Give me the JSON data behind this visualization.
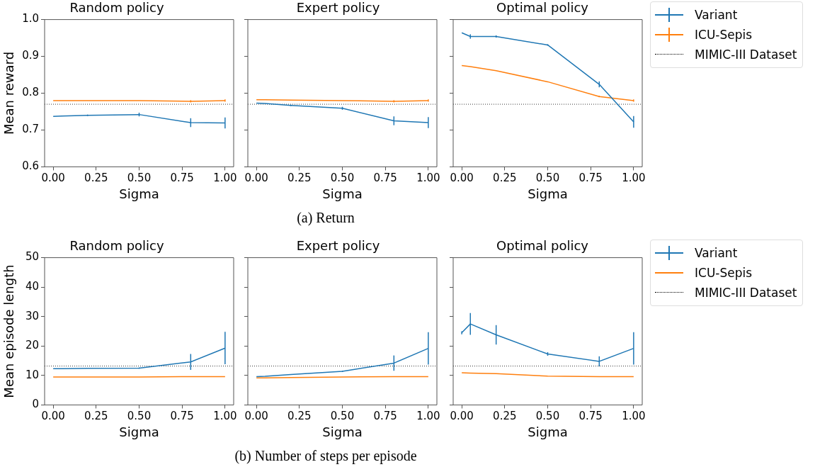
{
  "chart_data": [
    {
      "type": "line",
      "title": "Random policy",
      "xlabel": "Sigma",
      "ylabel": "Mean reward",
      "xlim": [
        -0.05,
        1.05
      ],
      "xticks": [
        {
          "value": 0,
          "label": "0.00"
        },
        {
          "value": 0.25,
          "label": "0.25"
        },
        {
          "value": 0.5,
          "label": "0.50"
        },
        {
          "value": 0.75,
          "label": "0.75"
        },
        {
          "value": 1,
          "label": "1.00"
        }
      ],
      "ylim": [
        0.6,
        1.0
      ],
      "yticks": [
        0.6,
        0.7,
        0.8,
        0.9,
        {
          "value": 1.0,
          "label": "1.0"
        }
      ],
      "grid": false,
      "x": [
        0,
        0.05,
        0.2,
        0.5,
        0.8,
        1
      ],
      "annotations": [
        "(a) Return"
      ],
      "series": [
        {
          "color": "#1f77b4",
          "values": [
            0.737,
            0.738,
            0.74,
            0.742,
            0.72,
            0.719
          ],
          "errors": [
            null,
            null,
            0.002,
            0.005,
            0.012,
            0.015
          ]
        },
        {
          "color": "#ff7f0e",
          "values": [
            0.78,
            0.78,
            0.78,
            0.78,
            0.778,
            0.78
          ],
          "errors": [
            null,
            null,
            null,
            null,
            0.003,
            0.003
          ]
        }
      ],
      "ref_lines": [
        {
          "axis": "y",
          "value": 0.77,
          "color": "#000000",
          "line_style": "dotted"
        }
      ]
    },
    {
      "type": "line",
      "title": "Expert policy",
      "xlabel": "Sigma",
      "xlim": [
        -0.05,
        1.05
      ],
      "xticks": [
        {
          "value": 0,
          "label": "0.00"
        },
        {
          "value": 0.25,
          "label": "0.25"
        },
        {
          "value": 0.5,
          "label": "0.50"
        },
        {
          "value": 0.75,
          "label": "0.75"
        },
        {
          "value": 1,
          "label": "1.00"
        }
      ],
      "ylim": [
        0.6,
        1.0
      ],
      "yticks": [
        0.6,
        0.7,
        0.8,
        0.9,
        1.0
      ],
      "tick_labels": "x",
      "grid": false,
      "x": [
        0,
        0.05,
        0.2,
        0.5,
        0.8,
        1
      ],
      "series": [
        {
          "color": "#1f77b4",
          "values": [
            0.773,
            0.772,
            0.767,
            0.759,
            0.725,
            0.72
          ],
          "errors": [
            null,
            null,
            0.002,
            0.004,
            0.012,
            0.015
          ]
        },
        {
          "color": "#ff7f0e",
          "values": [
            0.782,
            0.782,
            0.781,
            0.78,
            0.778,
            0.78
          ],
          "errors": [
            null,
            null,
            null,
            null,
            0.003,
            0.003
          ]
        }
      ],
      "ref_lines": [
        {
          "axis": "y",
          "value": 0.77,
          "color": "#000000",
          "line_style": "dotted"
        }
      ]
    },
    {
      "type": "line",
      "title": "Optimal policy",
      "xlabel": "Sigma",
      "xlim": [
        -0.05,
        1.05
      ],
      "xticks": [
        {
          "value": 0,
          "label": "0.00"
        },
        {
          "value": 0.25,
          "label": "0.25"
        },
        {
          "value": 0.5,
          "label": "0.50"
        },
        {
          "value": 0.75,
          "label": "0.75"
        },
        {
          "value": 1,
          "label": "1.00"
        }
      ],
      "ylim": [
        0.6,
        1.0
      ],
      "yticks": [
        0.6,
        0.7,
        0.8,
        0.9,
        1.0
      ],
      "tick_labels": "x",
      "grid": false,
      "legend": "right",
      "x": [
        0,
        0.05,
        0.2,
        0.5,
        0.8,
        1
      ],
      "series": [
        {
          "name": "Variant",
          "color": "#1f77b4",
          "values": [
            0.964,
            0.954,
            0.954,
            0.931,
            0.824,
            0.722
          ],
          "errors": [
            null,
            0.006,
            0.003,
            0.002,
            0.008,
            0.016
          ]
        },
        {
          "name": "ICU-Sepis",
          "color": "#ff7f0e",
          "values": [
            0.875,
            0.872,
            0.861,
            0.831,
            0.791,
            0.78
          ],
          "errors": [
            null,
            null,
            null,
            null,
            0.002,
            0.003
          ]
        }
      ],
      "ref_lines": [
        {
          "axis": "y",
          "value": 0.77,
          "label": "MIMIC-III Dataset",
          "color": "#000000",
          "line_style": "dotted"
        }
      ]
    },
    {
      "type": "line",
      "title": "Random policy",
      "xlabel": "Sigma",
      "ylabel": "Mean episode length",
      "xlim": [
        -0.05,
        1.05
      ],
      "xticks": [
        {
          "value": 0,
          "label": "0.00"
        },
        {
          "value": 0.25,
          "label": "0.25"
        },
        {
          "value": 0.5,
          "label": "0.50"
        },
        {
          "value": 0.75,
          "label": "0.75"
        },
        {
          "value": 1,
          "label": "1.00"
        }
      ],
      "ylim": [
        0,
        50
      ],
      "yticks": [
        0,
        10,
        20,
        30,
        40,
        50
      ],
      "grid": false,
      "x": [
        0,
        0.05,
        0.2,
        0.5,
        0.8,
        1
      ],
      "annotations": [
        "(b) Number of steps per episode"
      ],
      "series": [
        {
          "color": "#1f77b4",
          "values": [
            12.3,
            12.3,
            12.4,
            12.5,
            14.6,
            19.3
          ],
          "errors": [
            null,
            null,
            null,
            0.2,
            2.7,
            5.5
          ]
        },
        {
          "color": "#ff7f0e",
          "values": [
            9.5,
            9.5,
            9.5,
            9.5,
            9.6,
            9.6
          ]
        }
      ],
      "ref_lines": [
        {
          "axis": "y",
          "value": 13.2,
          "color": "#000000",
          "line_style": "dotted"
        }
      ]
    },
    {
      "type": "line",
      "title": "Expert policy",
      "xlabel": "Sigma",
      "xlim": [
        -0.05,
        1.05
      ],
      "xticks": [
        {
          "value": 0,
          "label": "0.00"
        },
        {
          "value": 0.25,
          "label": "0.25"
        },
        {
          "value": 0.5,
          "label": "0.50"
        },
        {
          "value": 0.75,
          "label": "0.75"
        },
        {
          "value": 1,
          "label": "1.00"
        }
      ],
      "ylim": [
        0,
        50
      ],
      "yticks": [
        0,
        10,
        20,
        30,
        40,
        50
      ],
      "tick_labels": "x",
      "grid": false,
      "x": [
        0,
        0.05,
        0.2,
        0.5,
        0.8,
        1
      ],
      "series": [
        {
          "color": "#1f77b4",
          "values": [
            9.6,
            9.7,
            10.3,
            11.4,
            14.2,
            19.2
          ],
          "errors": [
            null,
            null,
            null,
            0.2,
            2.6,
            5.5
          ]
        },
        {
          "color": "#ff7f0e",
          "values": [
            9.2,
            9.2,
            9.3,
            9.5,
            9.6,
            9.6
          ]
        }
      ],
      "ref_lines": [
        {
          "axis": "y",
          "value": 13.2,
          "color": "#000000",
          "line_style": "dotted"
        }
      ]
    },
    {
      "type": "line",
      "title": "Optimal policy",
      "xlabel": "Sigma",
      "xlim": [
        -0.05,
        1.05
      ],
      "xticks": [
        {
          "value": 0,
          "label": "0.00"
        },
        {
          "value": 0.25,
          "label": "0.25"
        },
        {
          "value": 0.5,
          "label": "0.50"
        },
        {
          "value": 0.75,
          "label": "0.75"
        },
        {
          "value": 1,
          "label": "1.00"
        }
      ],
      "ylim": [
        0,
        50
      ],
      "yticks": [
        0,
        10,
        20,
        30,
        40,
        50
      ],
      "tick_labels": "x",
      "grid": false,
      "legend": "right",
      "x": [
        0,
        0.05,
        0.2,
        0.5,
        0.8,
        1
      ],
      "series": [
        {
          "name": "Variant",
          "color": "#1f77b4",
          "values": [
            24.5,
            27.5,
            23.8,
            17.3,
            14.8,
            19.2
          ],
          "errors": [
            0.5,
            3.7,
            3.3,
            0.6,
            1.7,
            5.5
          ]
        },
        {
          "name": "ICU-Sepis",
          "color": "#ff7f0e",
          "values": [
            10.9,
            10.8,
            10.6,
            9.8,
            9.6,
            9.6
          ]
        }
      ],
      "ref_lines": [
        {
          "axis": "y",
          "value": 13.2,
          "label": "MIMIC-III Dataset",
          "color": "#000000",
          "line_style": "dotted"
        }
      ]
    }
  ]
}
